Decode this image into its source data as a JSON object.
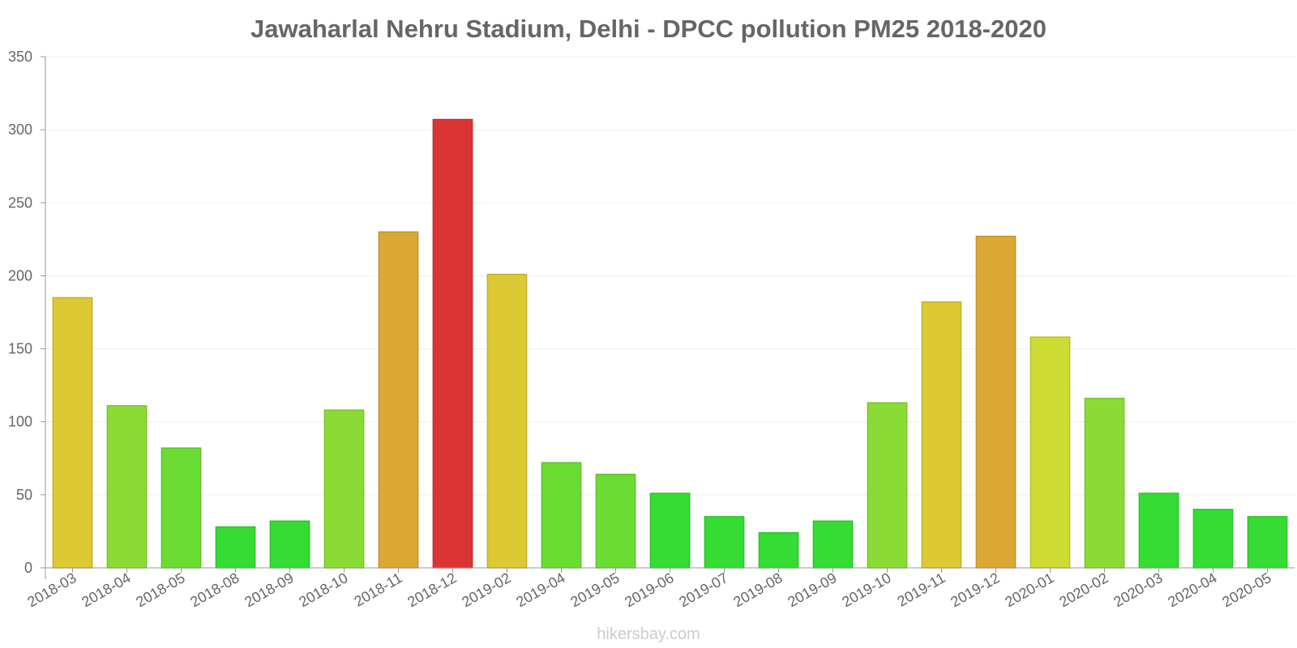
{
  "chart_data": {
    "type": "bar",
    "title": "Jawaharlal Nehru Stadium, Delhi - DPCC pollution PM25 2018-2020",
    "xlabel": "",
    "ylabel": "",
    "ylim": [
      0,
      350
    ],
    "yticks": [
      0,
      50,
      100,
      150,
      200,
      250,
      300,
      350
    ],
    "grid": true,
    "categories": [
      "2018-03",
      "2018-04",
      "2018-05",
      "2018-08",
      "2018-09",
      "2018-10",
      "2018-11",
      "2018-12",
      "2019-02",
      "2019-04",
      "2019-05",
      "2019-06",
      "2019-07",
      "2019-08",
      "2019-09",
      "2019-10",
      "2019-11",
      "2019-12",
      "2020-01",
      "2020-02",
      "2020-03",
      "2020-04",
      "2020-05"
    ],
    "values": [
      185,
      111,
      82,
      28,
      32,
      108,
      230,
      307,
      201,
      72,
      64,
      51,
      35,
      24,
      32,
      113,
      182,
      227,
      158,
      116,
      51,
      40,
      35
    ],
    "colors": [
      "#dcc934",
      "#8adc34",
      "#6adc34",
      "#34dc34",
      "#34dc34",
      "#8adc34",
      "#dca834",
      "#dc3434",
      "#dcc934",
      "#6adc34",
      "#6adc34",
      "#34dc34",
      "#34dc34",
      "#34dc34",
      "#34dc34",
      "#8adc34",
      "#dcc934",
      "#dca834",
      "#cedc34",
      "#8adc34",
      "#34dc34",
      "#34dc34",
      "#34dc34"
    ],
    "axis_color": "#999999",
    "grid_color": "#eeeeee"
  },
  "footer": {
    "credit": "hikersbay.com"
  }
}
